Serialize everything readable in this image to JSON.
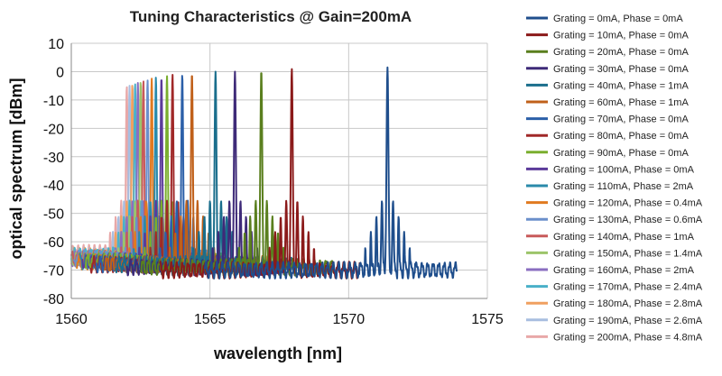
{
  "chart_data": {
    "type": "line",
    "title": "Tuning Characteristics @ Gain=200mA",
    "xlabel": "wavelength [nm]",
    "ylabel": "optical spectrum [dBm]",
    "xlim": [
      1560,
      1575
    ],
    "ylim": [
      -80,
      10
    ],
    "x_ticks": [
      1560,
      1565,
      1570,
      1575
    ],
    "y_ticks": [
      10,
      0,
      -10,
      -20,
      -30,
      -40,
      -50,
      -60,
      -70,
      -80
    ],
    "grid": true,
    "legend_position": "right",
    "series": [
      {
        "name": "Grating = 0mA, Phase = 0mA",
        "color": "#1F4E8C",
        "peak_wavelength": 1571.4,
        "peak_dbm": 1.5,
        "x_range": [
          1564.8,
          1573.9
        ],
        "floor_dbm": -70
      },
      {
        "name": "Grating = 10mA, Phase = 0mA",
        "color": "#8B1A1A",
        "peak_wavelength": 1567.95,
        "peak_dbm": 1.0,
        "x_range": [
          1563.2,
          1570.4
        ],
        "floor_dbm": -70
      },
      {
        "name": "Grating = 20mA, Phase = 0mA",
        "color": "#5A7F1E",
        "peak_wavelength": 1566.85,
        "peak_dbm": 0.5,
        "x_range": [
          1562.5,
          1569.5
        ],
        "floor_dbm": -69
      },
      {
        "name": "Grating = 30mA, Phase = 0mA",
        "color": "#3E2A78",
        "peak_wavelength": 1565.9,
        "peak_dbm": 0.0,
        "x_range": [
          1562.0,
          1568.7
        ],
        "floor_dbm": -69
      },
      {
        "name": "Grating = 40mA, Phase = 1mA",
        "color": "#1A6E8C",
        "peak_wavelength": 1565.2,
        "peak_dbm": 0.0,
        "x_range": [
          1561.6,
          1568.0
        ],
        "floor_dbm": -68
      },
      {
        "name": "Grating = 60mA, Phase = 1mA",
        "color": "#C0601A",
        "peak_wavelength": 1564.35,
        "peak_dbm": -0.5,
        "x_range": [
          1561.2,
          1567.2
        ],
        "floor_dbm": -68
      },
      {
        "name": "Grating = 70mA, Phase = 0mA",
        "color": "#2B5FA8",
        "peak_wavelength": 1564.0,
        "peak_dbm": -1.0,
        "x_range": [
          1560.9,
          1566.8
        ],
        "floor_dbm": -68
      },
      {
        "name": "Grating = 80mA, Phase = 0mA",
        "color": "#A02828",
        "peak_wavelength": 1563.65,
        "peak_dbm": -1.0,
        "x_range": [
          1560.7,
          1566.4
        ],
        "floor_dbm": -68
      },
      {
        "name": "Grating = 90mA, Phase = 0mA",
        "color": "#7AAE2E",
        "peak_wavelength": 1563.45,
        "peak_dbm": -1.5,
        "x_range": [
          1560.5,
          1566.0
        ],
        "floor_dbm": -67
      },
      {
        "name": "Grating = 100mA, Phase = 0mA",
        "color": "#5B3A9A",
        "peak_wavelength": 1563.25,
        "peak_dbm": -2.0,
        "x_range": [
          1560.4,
          1565.7
        ],
        "floor_dbm": -67
      },
      {
        "name": "Grating = 110mA, Phase = 2mA",
        "color": "#2A8AAA",
        "peak_wavelength": 1563.05,
        "peak_dbm": -2.0,
        "x_range": [
          1560.3,
          1565.4
        ],
        "floor_dbm": -67
      },
      {
        "name": "Grating = 120mA, Phase = 0.4mA",
        "color": "#E07A20",
        "peak_wavelength": 1562.9,
        "peak_dbm": -2.5,
        "x_range": [
          1560.2,
          1565.2
        ],
        "floor_dbm": -67
      },
      {
        "name": "Grating = 130mA, Phase = 0.6mA",
        "color": "#6B8FCB",
        "peak_wavelength": 1562.75,
        "peak_dbm": -3.0,
        "x_range": [
          1560.1,
          1565.0
        ],
        "floor_dbm": -66
      },
      {
        "name": "Grating = 140mA, Phase = 1mA",
        "color": "#C85A5A",
        "peak_wavelength": 1562.6,
        "peak_dbm": -3.0,
        "x_range": [
          1560.0,
          1564.8
        ],
        "floor_dbm": -66
      },
      {
        "name": "Grating = 150mA, Phase = 1.4mA",
        "color": "#9CC46A",
        "peak_wavelength": 1562.5,
        "peak_dbm": -3.5,
        "x_range": [
          1560.0,
          1564.6
        ],
        "floor_dbm": -66
      },
      {
        "name": "Grating = 160mA, Phase = 2mA",
        "color": "#8A6EC0",
        "peak_wavelength": 1562.4,
        "peak_dbm": -4.0,
        "x_range": [
          1560.0,
          1564.5
        ],
        "floor_dbm": -66
      },
      {
        "name": "Grating = 170mA, Phase = 2.4mA",
        "color": "#4AB0C8",
        "peak_wavelength": 1562.3,
        "peak_dbm": -4.0,
        "x_range": [
          1560.0,
          1564.4
        ],
        "floor_dbm": -65
      },
      {
        "name": "Grating = 180mA, Phase = 2.8mA",
        "color": "#F0A060",
        "peak_wavelength": 1562.2,
        "peak_dbm": -4.5,
        "x_range": [
          1560.0,
          1564.3
        ],
        "floor_dbm": -65
      },
      {
        "name": "Grating = 190mA, Phase = 2.6mA",
        "color": "#A8BEE0",
        "peak_wavelength": 1562.1,
        "peak_dbm": -5.0,
        "x_range": [
          1560.0,
          1564.2
        ],
        "floor_dbm": -65
      },
      {
        "name": "Grating = 200mA, Phase = 4.8mA",
        "color": "#E8A8A8",
        "peak_wavelength": 1562.0,
        "peak_dbm": -5.0,
        "x_range": [
          1560.0,
          1564.1
        ],
        "floor_dbm": -64
      }
    ]
  }
}
